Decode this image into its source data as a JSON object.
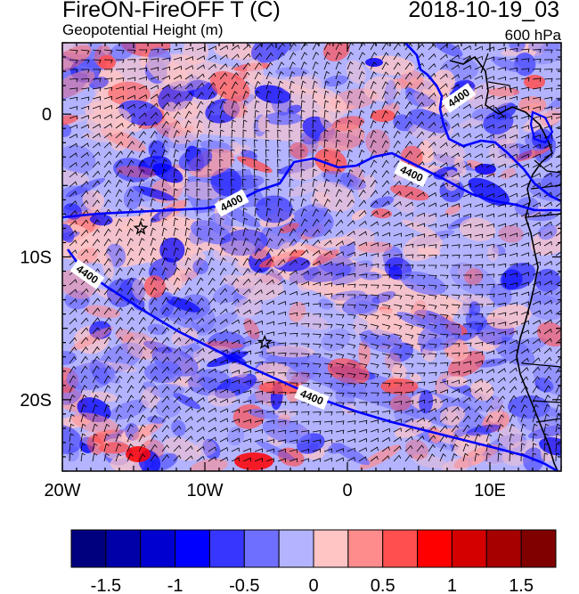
{
  "header": {
    "title_left": "FireON-FireOFF T (C)",
    "subtitle_left": "Geopotential Height (m)",
    "title_right": "2018-10-19_03",
    "subtitle_right": "600 hPa"
  },
  "map": {
    "lon_range": [
      -20,
      15
    ],
    "lat_range": [
      -25,
      5
    ],
    "x_ticks": [
      "20W",
      "10W",
      "0",
      "10E"
    ],
    "x_tick_values": [
      -20,
      -10,
      0,
      10
    ],
    "y_ticks": [
      "0",
      "10S",
      "20S"
    ],
    "y_tick_values": [
      0,
      -10,
      -20
    ],
    "contour_label": "4400",
    "markers": [
      {
        "name": "star",
        "lon": -14.5,
        "lat": -8.0
      },
      {
        "name": "star",
        "lon": -5.8,
        "lat": -16.0
      }
    ],
    "colors": {
      "field_base": "#b3b3ff",
      "contour": "#0000ff",
      "coast": "#000000"
    }
  },
  "colorbar": {
    "labels": [
      "-1.5",
      "-1",
      "-0.5",
      "0",
      "0.5",
      "1",
      "1.5"
    ],
    "colors": [
      "#00007f",
      "#0000a8",
      "#0000d0",
      "#0000ff",
      "#3636ff",
      "#6f6fff",
      "#b3b3ff",
      "#ffc4c4",
      "#ff8c8c",
      "#ff4f4f",
      "#ff0000",
      "#d40000",
      "#a60000",
      "#800000"
    ]
  }
}
